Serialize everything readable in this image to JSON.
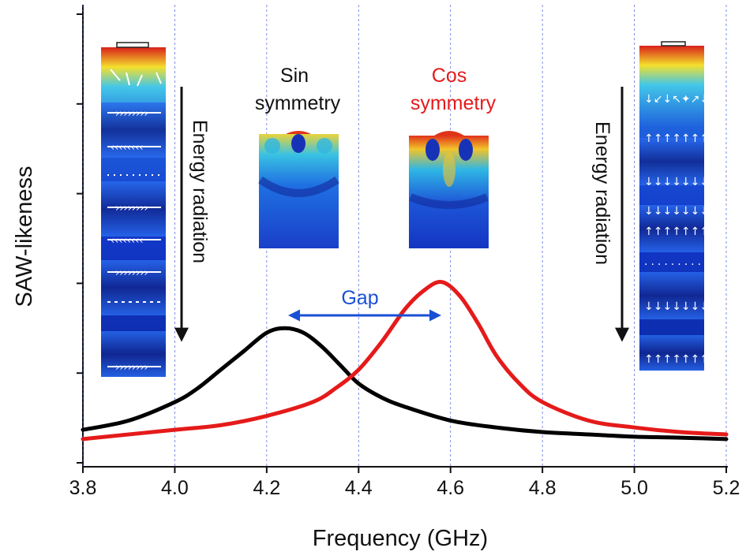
{
  "chart_data": {
    "type": "line",
    "xlabel": "Frequency (GHz)",
    "ylabel": "SAW-likeness",
    "xlim": [
      3.8,
      5.2
    ],
    "ylim": [
      0,
      1
    ],
    "x_ticks": [
      "3.8",
      "4.0",
      "4.2",
      "4.4",
      "4.6",
      "4.8",
      "5.0",
      "5.2"
    ],
    "y_tick_count": 6,
    "vertical_gridlines": [
      3.8,
      4.0,
      4.2,
      4.4,
      4.6,
      4.8,
      5.0,
      5.2
    ],
    "series": [
      {
        "color": "#000000",
        "x": [
          3.8,
          3.9,
          4.0,
          4.05,
          4.1,
          4.15,
          4.2,
          4.24,
          4.28,
          4.32,
          4.36,
          4.4,
          4.45,
          4.5,
          4.6,
          4.7,
          4.8,
          4.9,
          5.0,
          5.1,
          5.2
        ],
        "y": [
          0.08,
          0.1,
          0.14,
          0.17,
          0.21,
          0.25,
          0.29,
          0.3,
          0.29,
          0.26,
          0.22,
          0.18,
          0.15,
          0.13,
          0.1,
          0.085,
          0.075,
          0.07,
          0.065,
          0.063,
          0.06
        ]
      },
      {
        "color": "#e51a1a",
        "x": [
          3.8,
          4.0,
          4.1,
          4.2,
          4.3,
          4.35,
          4.4,
          4.45,
          4.5,
          4.54,
          4.58,
          4.62,
          4.66,
          4.7,
          4.75,
          4.8,
          4.9,
          5.0,
          5.1,
          5.2
        ],
        "y": [
          0.06,
          0.08,
          0.09,
          0.11,
          0.14,
          0.17,
          0.21,
          0.27,
          0.34,
          0.38,
          0.4,
          0.37,
          0.31,
          0.24,
          0.18,
          0.14,
          0.1,
          0.085,
          0.075,
          0.07
        ]
      }
    ],
    "annotations": {
      "sin_line1": "Sin",
      "sin_line2": "symmetry",
      "cos_line1": "Cos",
      "cos_line2": "symmetry",
      "gap": "Gap",
      "energy_left": "Energy radiation",
      "energy_right": "Energy radiation"
    },
    "colors": {
      "gap": "#1a4fd6",
      "cos_text": "#e51a1a",
      "grid": "#3b4fd6"
    }
  }
}
